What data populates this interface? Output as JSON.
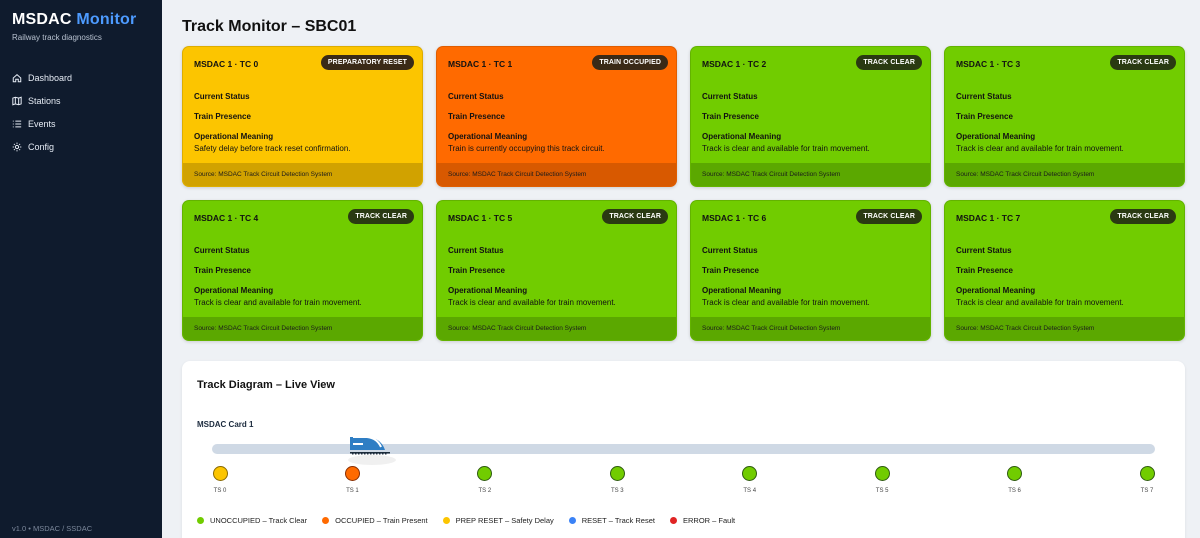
{
  "app": {
    "brand_part1": "MSDAC",
    "brand_part2": "Monitor",
    "subtitle": "Railway track diagnostics",
    "version": "v1.0 • MSDAC / SSDAC"
  },
  "nav": [
    {
      "label": "Dashboard",
      "icon": "home-icon"
    },
    {
      "label": "Stations",
      "icon": "map-icon"
    },
    {
      "label": "Events",
      "icon": "list-icon"
    },
    {
      "label": "Config",
      "icon": "gear-icon"
    }
  ],
  "page": {
    "title": "Track Monitor – SBC01"
  },
  "card_labels": {
    "current_status": "Current Status",
    "train_presence": "Train Presence",
    "operational_meaning": "Operational Meaning",
    "source": "Source: MSDAC Track Circuit Detection System"
  },
  "cards": [
    {
      "title": "MSDAC 1 · TC 0",
      "badge": "PREPARATORY RESET",
      "meaning": "Safety delay before track reset confirmation.",
      "state": "yellow"
    },
    {
      "title": "MSDAC 1 · TC 1",
      "badge": "TRAIN OCCUPIED",
      "meaning": "Train is currently occupying this track circuit.",
      "state": "orange"
    },
    {
      "title": "MSDAC 1 · TC 2",
      "badge": "TRACK CLEAR",
      "meaning": "Track is clear and available for train movement.",
      "state": "green"
    },
    {
      "title": "MSDAC 1 · TC 3",
      "badge": "TRACK CLEAR",
      "meaning": "Track is clear and available for train movement.",
      "state": "green"
    },
    {
      "title": "MSDAC 1 · TC 4",
      "badge": "TRACK CLEAR",
      "meaning": "Track is clear and available for train movement.",
      "state": "green"
    },
    {
      "title": "MSDAC 1 · TC 5",
      "badge": "TRACK CLEAR",
      "meaning": "Track is clear and available for train movement.",
      "state": "green"
    },
    {
      "title": "MSDAC 1 · TC 6",
      "badge": "TRACK CLEAR",
      "meaning": "Track is clear and available for train movement.",
      "state": "green"
    },
    {
      "title": "MSDAC 1 · TC 7",
      "badge": "TRACK CLEAR",
      "meaning": "Track is clear and available for train movement.",
      "state": "green"
    }
  ],
  "diagram": {
    "title": "Track Diagram – Live View",
    "card_label": "MSDAC Card 1",
    "train_at": "TS 1",
    "sections": [
      {
        "label": "TS 0",
        "state": "prep-reset"
      },
      {
        "label": "TS 1",
        "state": "occupied"
      },
      {
        "label": "TS 2",
        "state": "unoccupied"
      },
      {
        "label": "TS 3",
        "state": "unoccupied"
      },
      {
        "label": "TS 4",
        "state": "unoccupied"
      },
      {
        "label": "TS 5",
        "state": "unoccupied"
      },
      {
        "label": "TS 6",
        "state": "unoccupied"
      },
      {
        "label": "TS 7",
        "state": "unoccupied"
      }
    ],
    "legend": [
      {
        "label": "UNOCCUPIED – Track Clear",
        "color": "#71cc00"
      },
      {
        "label": "OCCUPIED – Train Present",
        "color": "#ff6a00"
      },
      {
        "label": "PREP RESET – Safety Delay",
        "color": "#fcc500"
      },
      {
        "label": "RESET – Track Reset",
        "color": "#3b82f6"
      },
      {
        "label": "ERROR – Fault",
        "color": "#e02424"
      }
    ]
  },
  "colors": {
    "sidebar": "#0f1b2d",
    "brand_accent": "#4d9bff",
    "yellow": "#fcc500",
    "orange": "#ff6a00",
    "green": "#71cc00"
  }
}
